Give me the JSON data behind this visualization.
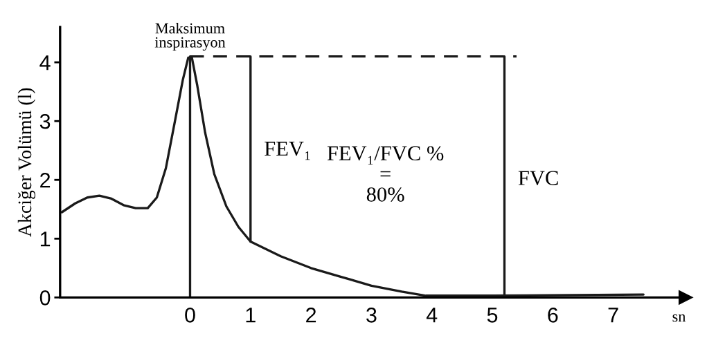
{
  "chart_data": {
    "type": "line",
    "ylabel": "Akciğer Volümü (l)",
    "xlabel": "sn",
    "xlim": [
      -2.15,
      8.2
    ],
    "ylim": [
      0,
      4.6
    ],
    "xticks": [
      0,
      1,
      2,
      3,
      4,
      5,
      6,
      7
    ],
    "yticks": [
      0,
      1,
      2,
      3,
      4
    ],
    "grid": false,
    "legend": false,
    "marker": "none",
    "series": [
      {
        "color": "#1a1a1a",
        "line_style": "solid",
        "x": [
          -2.12,
          -1.9,
          -1.7,
          -1.5,
          -1.3,
          -1.1,
          -0.9,
          -0.7,
          -0.55,
          -0.4,
          -0.25,
          -0.12,
          -0.03,
          0.03,
          0.12,
          0.25,
          0.4,
          0.6,
          0.8,
          1.0,
          1.5,
          2.0,
          2.5,
          3.0,
          3.5,
          3.9,
          5.0,
          7.5
        ],
        "values": [
          1.45,
          1.6,
          1.7,
          1.73,
          1.68,
          1.57,
          1.52,
          1.52,
          1.7,
          2.2,
          3.0,
          3.7,
          4.08,
          4.08,
          3.6,
          2.8,
          2.1,
          1.55,
          1.2,
          0.95,
          0.7,
          0.5,
          0.35,
          0.2,
          0.1,
          0.03,
          0.03,
          0.05
        ]
      },
      {
        "color": "#1a1a1a",
        "line_style": "solid",
        "x": [
          0,
          0
        ],
        "values": [
          0,
          4.1
        ]
      },
      {
        "color": "#1a1a1a",
        "line_style": "dashed",
        "x": [
          0,
          5.4
        ],
        "values": [
          4.1,
          4.1
        ]
      },
      {
        "color": "#1a1a1a",
        "line_style": "solid",
        "x": [
          1,
          1
        ],
        "values": [
          0.95,
          4.1
        ]
      },
      {
        "color": "#1a1a1a",
        "line_style": "solid",
        "x": [
          5.2,
          5.2
        ],
        "values": [
          0,
          4.1
        ]
      }
    ],
    "annotations": [
      {
        "text": "Maksimum\ninspirasyon",
        "x": 0,
        "y": 4.1
      },
      {
        "text": "FEV₁",
        "x": 1,
        "y": 2.5
      },
      "FEV₁/FVC %\n=\n80%",
      {
        "text": "FVC",
        "x": 5.2,
        "y": 2.0
      }
    ]
  }
}
